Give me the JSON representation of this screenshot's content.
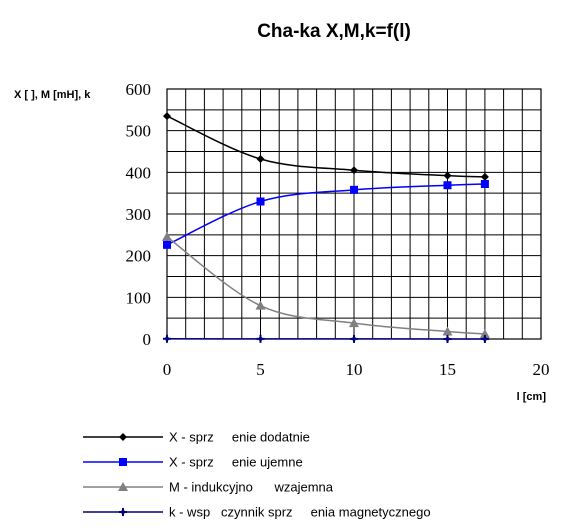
{
  "chart_data": {
    "type": "line",
    "title": "Cha-ka X,M,k=f(l)",
    "xlabel": "l [cm]",
    "ylabel": "X [ ], M [mH], k",
    "xlim": [
      0,
      20
    ],
    "ylim": [
      0,
      600
    ],
    "x_ticks": [
      "0",
      "5",
      "10",
      "15",
      "20"
    ],
    "y_ticks": [
      "0",
      "100",
      "200",
      "300",
      "400",
      "500",
      "600"
    ],
    "grid": true,
    "legend_position": "bottom",
    "series": [
      {
        "name": "X - sprz     enie dodatnie",
        "color": "#000000",
        "marker": "diamond",
        "x": [
          0,
          5,
          10,
          15,
          17
        ],
        "y": [
          535,
          432,
          405,
          392,
          389
        ]
      },
      {
        "name": "X - sprz     enie ujemne",
        "color": "#0000ff",
        "marker": "square",
        "x": [
          0,
          5,
          10,
          15,
          17
        ],
        "y": [
          226,
          330,
          358,
          369,
          372
        ]
      },
      {
        "name": "M - indukcyjno      wzajemna",
        "color": "#808080",
        "marker": "triangle",
        "x": [
          0,
          5,
          10,
          15,
          17
        ],
        "y": [
          245,
          80,
          38,
          18,
          12
        ]
      },
      {
        "name": "k - wsp   czynnik sprz     enia magnetycznego",
        "color": "#000080",
        "marker": "cross",
        "x": [
          0,
          5,
          10,
          15,
          17
        ],
        "y": [
          0.5,
          0.35,
          0.2,
          0.1,
          0.07
        ]
      }
    ]
  }
}
